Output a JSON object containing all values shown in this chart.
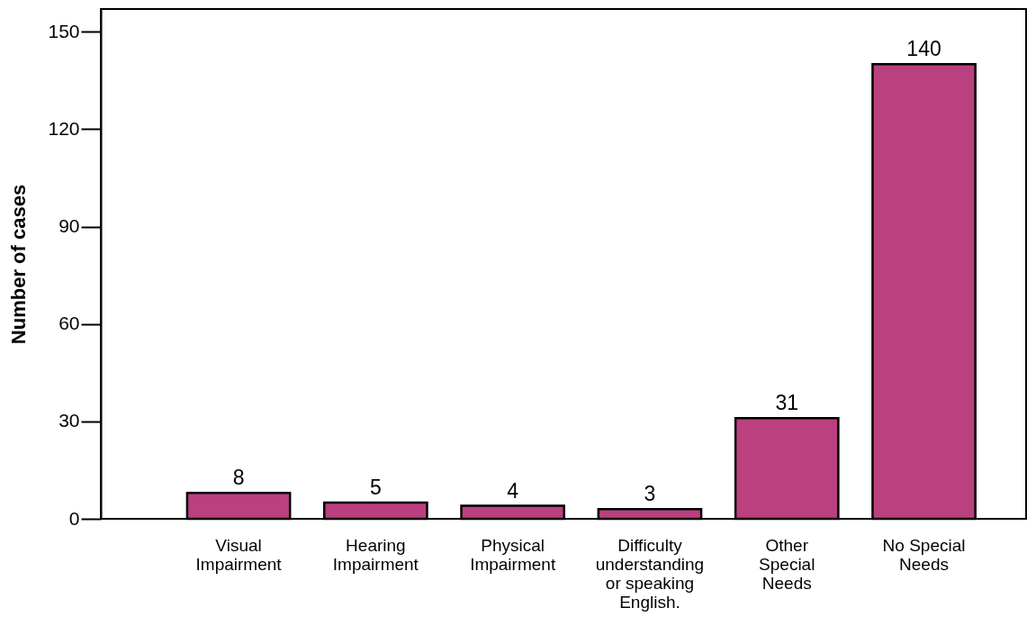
{
  "chart_data": {
    "type": "bar",
    "ylabel": "Number of cases",
    "categories": [
      "Visual Impairment",
      "Hearing Impairment",
      "Physical Impairment",
      "Difficulty understanding or speaking English.",
      "Other Special Needs",
      "No Special Needs"
    ],
    "values": [
      8,
      5,
      4,
      3,
      31,
      140
    ],
    "color": "#bb4080",
    "ylim": [
      0,
      157
    ],
    "yticks": [
      0,
      30,
      60,
      90,
      120,
      150
    ],
    "grid": false,
    "data_labels": true
  }
}
